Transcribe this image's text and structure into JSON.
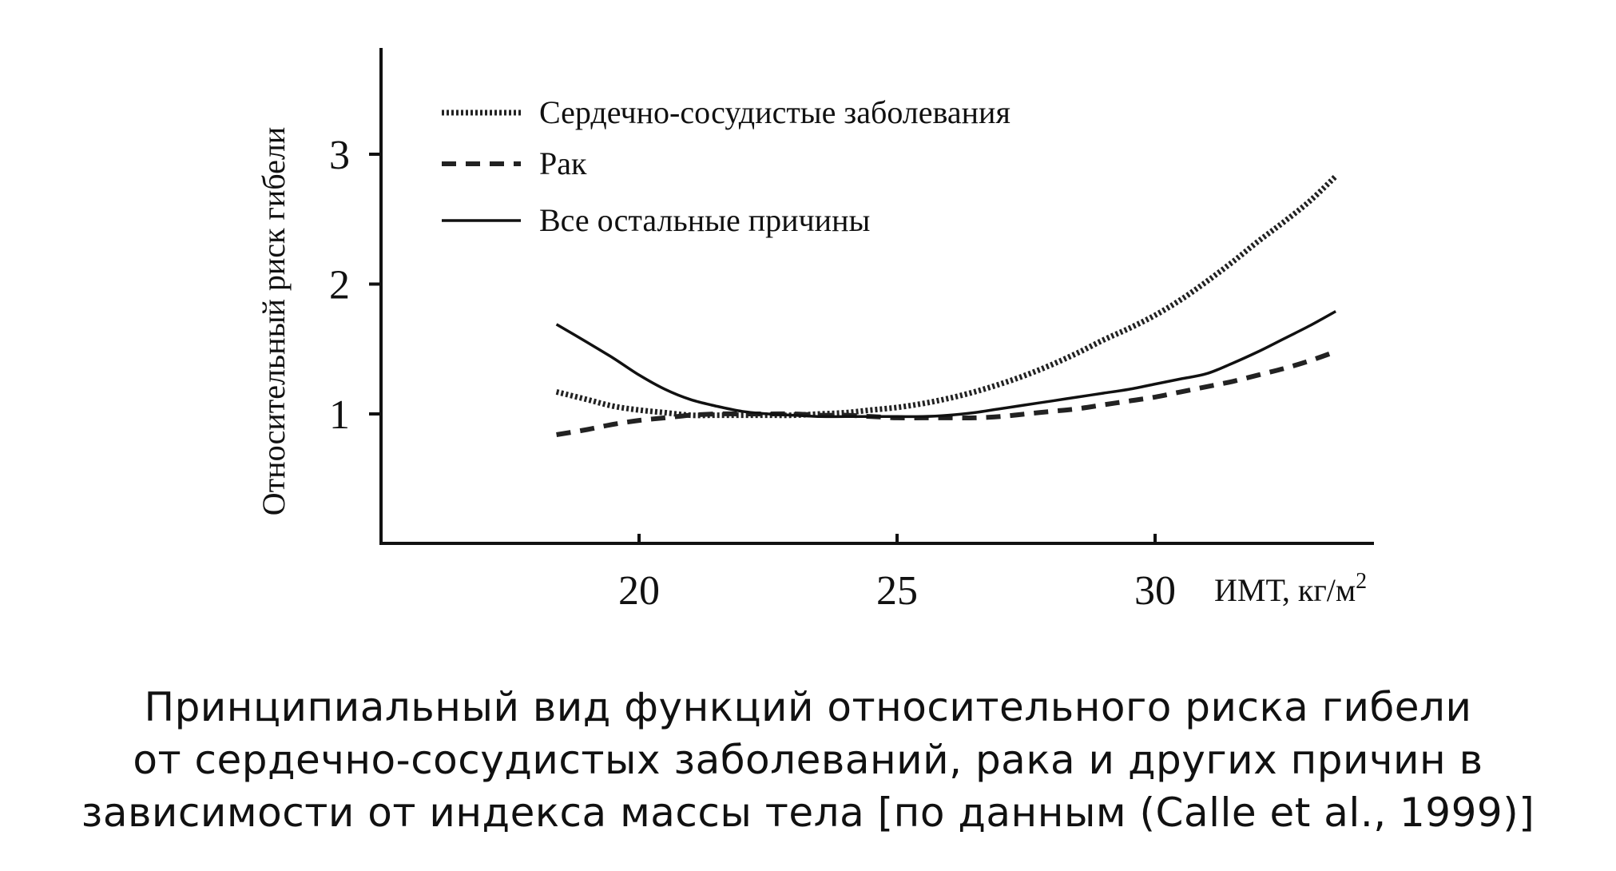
{
  "chart_data": {
    "type": "line",
    "ylabel": "Относительный риск гибели",
    "xlabel": "ИМТ, кг/м",
    "xlabel_superscript": "2",
    "xlim": [
      15,
      34.5
    ],
    "ylim": [
      0,
      3.8
    ],
    "x_ticks": [
      "20",
      "25",
      "30"
    ],
    "x_tick_values": [
      20,
      25,
      30
    ],
    "y_ticks": [
      "1",
      "2",
      "3"
    ],
    "y_tick_values": [
      1,
      2,
      3
    ],
    "grid": false,
    "legend_position": "top-left",
    "series": [
      {
        "name": "Сердечно-сосудистые заболевания",
        "style": "dotted",
        "color": "#222222",
        "x": [
          18.4,
          19,
          19.5,
          20,
          20.5,
          21,
          21.5,
          22,
          22.5,
          23,
          23.5,
          24,
          24.5,
          25,
          25.5,
          26,
          26.5,
          27,
          27.5,
          28,
          28.5,
          29,
          29.5,
          30,
          30.5,
          31,
          31.5,
          32,
          32.5,
          33,
          33.5
        ],
        "values": [
          1.17,
          1.11,
          1.06,
          1.03,
          1.01,
          0.99,
          0.99,
          0.99,
          0.99,
          0.99,
          1.0,
          1.01,
          1.03,
          1.05,
          1.08,
          1.12,
          1.17,
          1.23,
          1.3,
          1.38,
          1.47,
          1.57,
          1.66,
          1.76,
          1.88,
          2.02,
          2.17,
          2.33,
          2.48,
          2.64,
          2.83
        ]
      },
      {
        "name": "Рак",
        "style": "dashed",
        "color": "#222222",
        "x": [
          18.4,
          19,
          19.5,
          20,
          20.5,
          21,
          21.5,
          22,
          22.5,
          23,
          23.5,
          24,
          24.5,
          25,
          25.5,
          26,
          26.5,
          27,
          27.5,
          28,
          28.5,
          29,
          29.5,
          30,
          30.5,
          31,
          31.5,
          32,
          32.5,
          33,
          33.5
        ],
        "values": [
          0.84,
          0.88,
          0.92,
          0.95,
          0.97,
          0.99,
          1.0,
          1.0,
          1.0,
          1.0,
          0.99,
          0.99,
          0.98,
          0.97,
          0.97,
          0.97,
          0.97,
          0.98,
          1.0,
          1.02,
          1.04,
          1.07,
          1.1,
          1.13,
          1.17,
          1.21,
          1.25,
          1.3,
          1.35,
          1.41,
          1.48
        ]
      },
      {
        "name": "Все остальные причины",
        "style": "solid",
        "color": "#111111",
        "x": [
          18.4,
          19,
          19.5,
          20,
          20.5,
          21,
          21.5,
          22,
          22.5,
          23,
          23.5,
          24,
          24.5,
          25,
          25.5,
          26,
          26.5,
          27,
          27.5,
          28,
          28.5,
          29,
          29.5,
          30,
          30.5,
          31,
          31.5,
          32,
          32.5,
          33,
          33.5
        ],
        "values": [
          1.69,
          1.55,
          1.43,
          1.3,
          1.19,
          1.11,
          1.06,
          1.02,
          1.0,
          0.99,
          0.98,
          0.98,
          0.98,
          0.98,
          0.98,
          0.99,
          1.01,
          1.04,
          1.07,
          1.1,
          1.13,
          1.16,
          1.19,
          1.23,
          1.27,
          1.31,
          1.39,
          1.48,
          1.58,
          1.68,
          1.79
        ]
      }
    ]
  },
  "caption": {
    "lines": [
      "Принципиальный вид функций относительного риска гибели",
      "от сердечно-сосудистых заболеваний, рака и других причин в",
      "зависимости от индекса массы тела [по данным (Calle et al., 1999)]"
    ]
  }
}
